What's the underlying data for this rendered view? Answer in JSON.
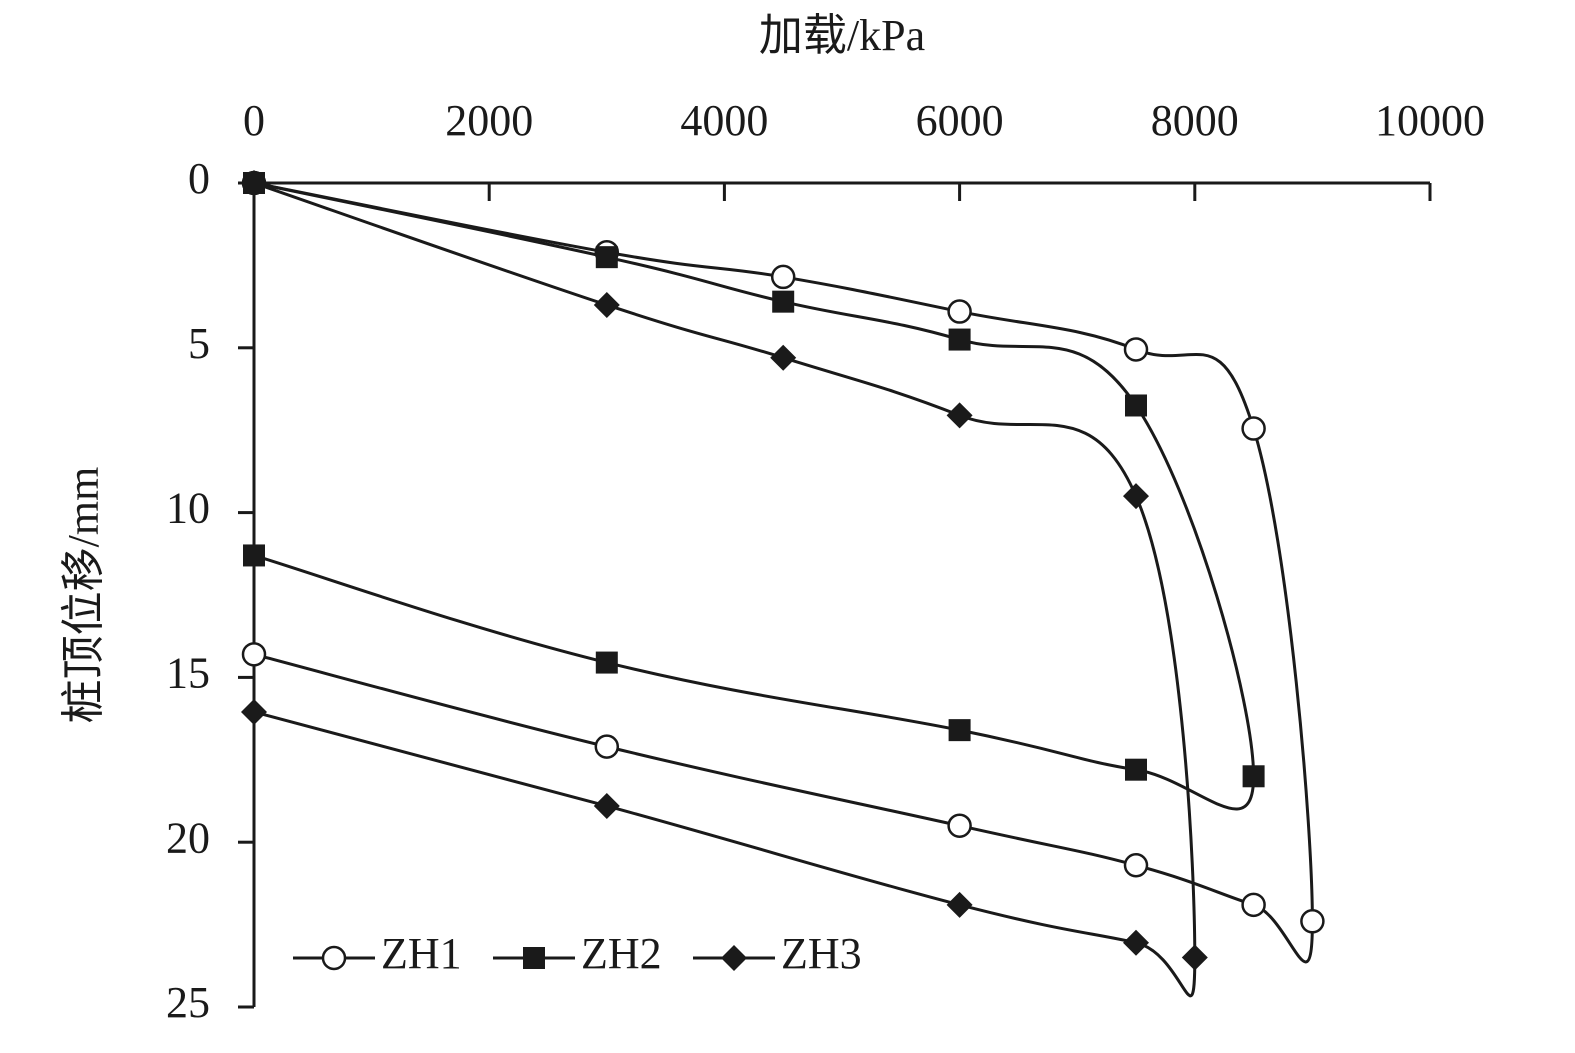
{
  "chart_data": {
    "type": "line",
    "x_label": "加载/kPa",
    "y_label": "桩顶位移/mm",
    "xlim": [
      0,
      10000
    ],
    "xticks": [
      0,
      2000,
      4000,
      6000,
      8000,
      10000
    ],
    "ylim": [
      0,
      25
    ],
    "yticks": [
      0,
      5,
      10,
      15,
      20,
      25
    ],
    "y_inverted": true,
    "x_axis_position": "top",
    "legend": "lower left",
    "smooth": true,
    "series": [
      {
        "name": "ZH1",
        "color": "#1a1a1a",
        "marker": "circle",
        "x": [
          0,
          3000,
          4500,
          6000,
          7500,
          8500,
          9000,
          8500,
          7500,
          6000,
          3000,
          0
        ],
        "values": [
          0,
          2.1,
          2.85,
          3.9,
          5.05,
          7.45,
          22.4,
          21.9,
          20.7,
          19.5,
          17.1,
          14.3
        ]
      },
      {
        "name": "ZH2",
        "color": "#1a1a1a",
        "marker": "square",
        "x": [
          0,
          3000,
          4500,
          6000,
          7500,
          8500,
          7500,
          6000,
          3000,
          0
        ],
        "values": [
          0,
          2.25,
          3.6,
          4.75,
          6.75,
          18.0,
          17.8,
          16.6,
          14.55,
          11.3
        ]
      },
      {
        "name": "ZH3",
        "color": "#1a1a1a",
        "marker": "diamond",
        "x": [
          0,
          3000,
          4500,
          6000,
          7500,
          8000,
          7500,
          6000,
          3000,
          0
        ],
        "values": [
          0,
          3.7,
          5.3,
          7.05,
          9.5,
          23.5,
          23.05,
          21.9,
          18.9,
          16.05
        ]
      }
    ]
  }
}
